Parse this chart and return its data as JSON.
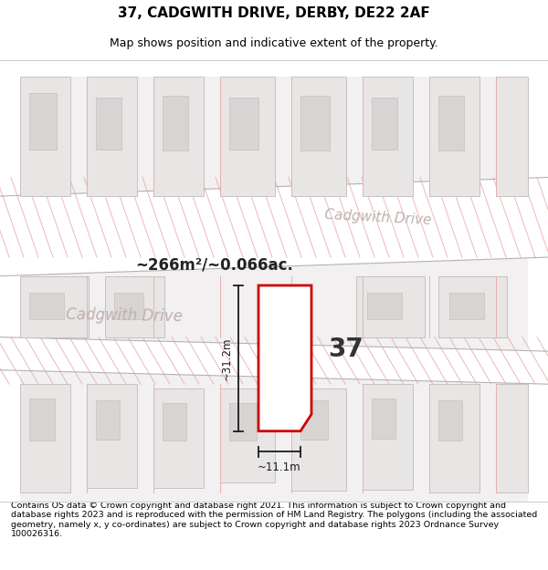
{
  "title_line1": "37, CADGWITH DRIVE, DERBY, DE22 2AF",
  "title_line2": "Map shows position and indicative extent of the property.",
  "footer_text": "Contains OS data © Crown copyright and database right 2021. This information is subject to Crown copyright and database rights 2023 and is reproduced with the permission of HM Land Registry. The polygons (including the associated geometry, namely x, y co-ordinates) are subject to Crown copyright and database rights 2023 Ordnance Survey 100026316.",
  "area_label": "~266m²/~0.066ac.",
  "width_label": "~11.1m",
  "height_label": "~31.2m",
  "number_label": "37",
  "road_label_lower": "Cadgwith Drive",
  "road_label_upper": "Cadgwith Drive",
  "bg_color": "#f2f0f0",
  "road_color": "#ffffff",
  "plot_color": "#cc0000",
  "dim_color": "#1a1a1a",
  "block_fill": "#e8e5e5",
  "block_edge": "#c8c0c0",
  "inner_fill": "#d8d4d4",
  "road_line_color": "#e8b0b0",
  "road_label_color": "#c0b0b0",
  "title_fontsize": 11,
  "subtitle_fontsize": 9,
  "footer_fontsize": 6.8
}
